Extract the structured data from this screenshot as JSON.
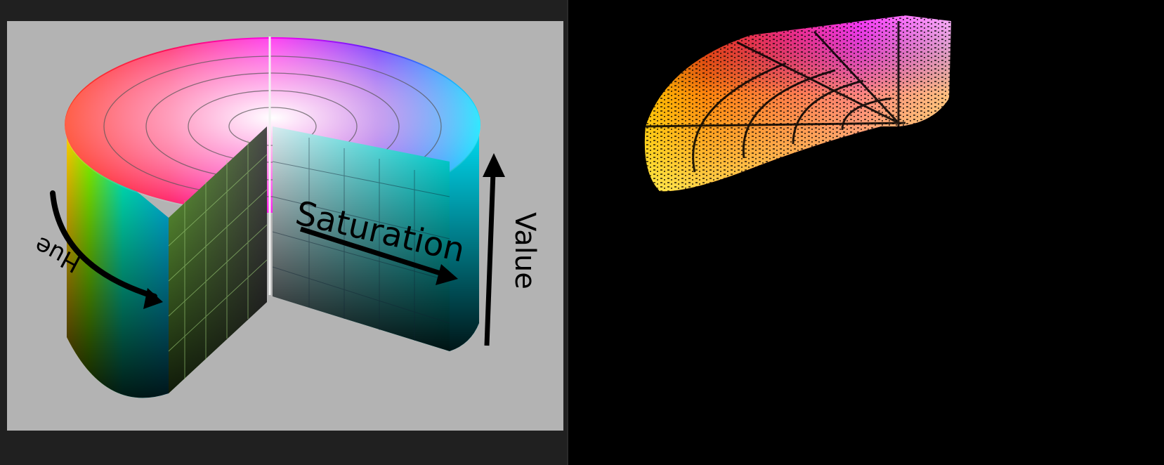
{
  "left_panel": {
    "labels": {
      "hue": "Hue",
      "saturation": "Saturation",
      "value": "Value"
    }
  },
  "right_panel": {
    "content": "masked-hsv-cylinder"
  },
  "colors": {
    "panel_bg": "#202020",
    "canvas_bg": "#b3b3b3",
    "arrow": "#000000",
    "right_bg": "#000000"
  }
}
